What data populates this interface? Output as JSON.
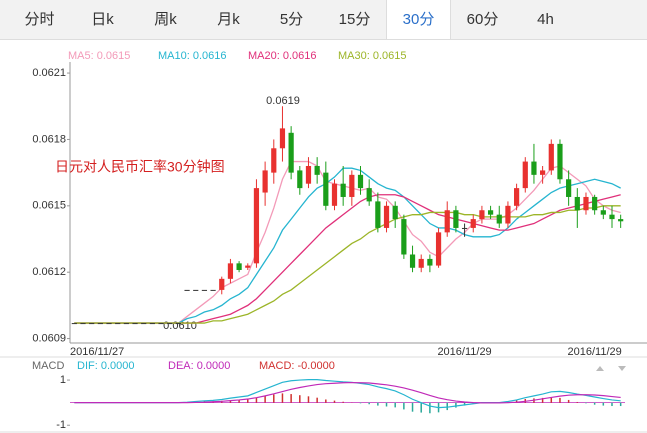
{
  "tabs": [
    "分时",
    "日k",
    "周k",
    "月k",
    "5分",
    "15分",
    "30分",
    "60分",
    "4h"
  ],
  "chart_data": [
    {
      "type": "candlestick",
      "title": "日元对人民币汇率30分钟图",
      "categories": [
        "2016/11/27",
        null,
        null,
        null,
        null,
        null,
        null,
        null,
        null,
        null,
        null,
        null,
        null,
        null,
        null,
        null,
        null,
        null,
        null,
        null,
        null,
        null,
        null,
        null,
        null,
        null,
        null,
        null,
        null,
        null,
        null,
        null,
        null,
        null,
        null,
        null,
        null,
        null,
        null,
        null,
        null,
        null,
        null,
        null,
        null,
        "2016/11/29",
        null,
        null,
        null,
        null,
        null,
        null,
        null,
        null,
        null,
        null,
        null,
        null,
        null,
        null,
        "2016/11/29",
        null,
        null,
        null
      ],
      "open": [
        0.06097,
        0.06097,
        0.06097,
        0.06097,
        0.06097,
        0.06097,
        0.06097,
        0.06097,
        0.06097,
        0.06097,
        0.06097,
        0.06097,
        0.06097,
        0.06112,
        0.06112,
        0.06112,
        0.06112,
        0.06112,
        0.06117,
        0.06124,
        0.06122,
        0.06124,
        0.06156,
        0.06165,
        0.06176,
        0.06183,
        0.06166,
        0.0616,
        0.06168,
        0.06165,
        0.0615,
        0.0616,
        0.06154,
        0.06164,
        0.06158,
        0.06152,
        0.0614,
        0.0615,
        0.06144,
        0.06128,
        0.06122,
        0.06126,
        0.06123,
        0.06138,
        0.06148,
        0.0614,
        0.0614,
        0.06144,
        0.06148,
        0.06146,
        0.06142,
        0.0615,
        0.06158,
        0.0617,
        0.06164,
        0.06166,
        0.06178,
        0.06162,
        0.06154,
        0.06148,
        0.06154,
        0.06148,
        0.06146,
        0.06144
      ],
      "high": [
        0.06097,
        0.06097,
        0.06097,
        0.06097,
        0.06097,
        0.06097,
        0.06097,
        0.06097,
        0.06097,
        0.06097,
        0.06097,
        0.06097,
        0.06097,
        0.06112,
        0.06112,
        0.06112,
        0.06112,
        0.06118,
        0.06126,
        0.06125,
        0.06124,
        0.06162,
        0.0617,
        0.0618,
        0.06195,
        0.06186,
        0.06168,
        0.06172,
        0.06172,
        0.0617,
        0.06162,
        0.06168,
        0.06166,
        0.06168,
        0.06162,
        0.06156,
        0.06152,
        0.06152,
        0.06146,
        0.06132,
        0.06128,
        0.06128,
        0.0614,
        0.06152,
        0.0615,
        0.06142,
        0.06146,
        0.0615,
        0.0615,
        0.0615,
        0.06152,
        0.0616,
        0.06172,
        0.06178,
        0.06168,
        0.0618,
        0.0618,
        0.06166,
        0.06158,
        0.06156,
        0.06155,
        0.0615,
        0.0615,
        0.06146
      ],
      "low": [
        0.06097,
        0.06097,
        0.06097,
        0.06097,
        0.06097,
        0.06097,
        0.06097,
        0.06097,
        0.06097,
        0.06097,
        0.06097,
        0.06097,
        0.06097,
        0.06112,
        0.06112,
        0.06112,
        0.06112,
        0.0611,
        0.06115,
        0.0612,
        0.06121,
        0.06122,
        0.0615,
        0.0616,
        0.0617,
        0.06162,
        0.06155,
        0.06158,
        0.0616,
        0.06148,
        0.06148,
        0.0615,
        0.0615,
        0.06155,
        0.0615,
        0.06138,
        0.06138,
        0.0614,
        0.06126,
        0.0612,
        0.0612,
        0.0612,
        0.06122,
        0.06136,
        0.06138,
        0.06136,
        0.06138,
        0.06142,
        0.06144,
        0.0614,
        0.0614,
        0.06148,
        0.06156,
        0.0616,
        0.0616,
        0.06164,
        0.0616,
        0.0615,
        0.0614,
        0.06146,
        0.06146,
        0.06144,
        0.0614,
        0.0614
      ],
      "close": [
        0.06097,
        0.06097,
        0.06097,
        0.06097,
        0.06097,
        0.06097,
        0.06097,
        0.06097,
        0.06097,
        0.06097,
        0.06097,
        0.06097,
        0.06097,
        0.06112,
        0.06112,
        0.06112,
        0.06112,
        0.06117,
        0.06124,
        0.06121,
        0.06123,
        0.06158,
        0.06166,
        0.06176,
        0.06185,
        0.06165,
        0.06158,
        0.06168,
        0.06164,
        0.0615,
        0.0616,
        0.06154,
        0.06164,
        0.06158,
        0.06152,
        0.0614,
        0.0615,
        0.06144,
        0.06128,
        0.06122,
        0.06126,
        0.06123,
        0.06138,
        0.06148,
        0.0614,
        0.0614,
        0.06144,
        0.06148,
        0.06146,
        0.06142,
        0.0615,
        0.06158,
        0.0617,
        0.06164,
        0.06166,
        0.06178,
        0.06162,
        0.06154,
        0.06148,
        0.06154,
        0.06148,
        0.06146,
        0.06144,
        0.06143
      ],
      "up_color": "#e8312f",
      "down_color": "#1a9e1a",
      "flat_color": "#333333",
      "series": [
        {
          "name": "MA5: 0.0615",
          "color": "#f39ab8",
          "values": [
            0.06097,
            0.06097,
            0.06097,
            0.06097,
            0.06097,
            0.06097,
            0.06097,
            0.06097,
            0.06097,
            0.06097,
            0.06097,
            0.06097,
            0.06097,
            0.061,
            0.06103,
            0.06106,
            0.06109,
            0.06113,
            0.06115,
            0.06117,
            0.06119,
            0.06129,
            0.06138,
            0.06149,
            0.06162,
            0.0617,
            0.0617,
            0.0617,
            0.06168,
            0.06161,
            0.0616,
            0.06159,
            0.06158,
            0.06157,
            0.06158,
            0.06154,
            0.06153,
            0.06149,
            0.06143,
            0.06137,
            0.06134,
            0.06129,
            0.06127,
            0.06131,
            0.06135,
            0.06138,
            0.06142,
            0.06144,
            0.06144,
            0.06144,
            0.06146,
            0.06149,
            0.06153,
            0.06157,
            0.06162,
            0.06167,
            0.06168,
            0.06165,
            0.06162,
            0.06159,
            0.06153,
            0.0615,
            0.06148,
            0.06147
          ]
        },
        {
          "name": "MA10: 0.0616",
          "color": "#26b5d0",
          "values": [
            0.06097,
            0.06097,
            0.06097,
            0.06097,
            0.06097,
            0.06097,
            0.06097,
            0.06097,
            0.06097,
            0.06097,
            0.06097,
            0.06097,
            0.06097,
            0.06099,
            0.061,
            0.06102,
            0.06103,
            0.06105,
            0.06108,
            0.0611,
            0.06113,
            0.06119,
            0.06125,
            0.06131,
            0.06139,
            0.06144,
            0.06149,
            0.06154,
            0.06158,
            0.0616,
            0.06163,
            0.06167,
            0.06167,
            0.06166,
            0.06163,
            0.0616,
            0.06158,
            0.06157,
            0.06154,
            0.0615,
            0.06146,
            0.06142,
            0.0614,
            0.0614,
            0.06139,
            0.06137,
            0.06136,
            0.06136,
            0.06136,
            0.06137,
            0.0614,
            0.06144,
            0.06147,
            0.0615,
            0.06153,
            0.06156,
            0.06158,
            0.06159,
            0.0616,
            0.06161,
            0.06162,
            0.06161,
            0.0616,
            0.06158
          ]
        },
        {
          "name": "MA20: 0.0616",
          "color": "#e0307a",
          "values": [
            0.06097,
            0.06097,
            0.06097,
            0.06097,
            0.06097,
            0.06097,
            0.06097,
            0.06097,
            0.06097,
            0.06097,
            0.06097,
            0.06097,
            0.06097,
            0.06097,
            0.06097,
            0.06098,
            0.06099,
            0.061,
            0.06101,
            0.06103,
            0.06105,
            0.06108,
            0.06112,
            0.06116,
            0.0612,
            0.06124,
            0.06128,
            0.06132,
            0.06136,
            0.0614,
            0.06143,
            0.06146,
            0.06149,
            0.06152,
            0.06154,
            0.06155,
            0.06155,
            0.06155,
            0.06154,
            0.06152,
            0.0615,
            0.06148,
            0.06146,
            0.06145,
            0.06144,
            0.06143,
            0.06142,
            0.06141,
            0.0614,
            0.06139,
            0.06139,
            0.0614,
            0.06141,
            0.06142,
            0.06144,
            0.06146,
            0.06148,
            0.06149,
            0.0615,
            0.06151,
            0.06152,
            0.06153,
            0.06154,
            0.06155
          ]
        },
        {
          "name": "MA30: 0.0615",
          "color": "#9cb528",
          "values": [
            0.06097,
            0.06097,
            0.06097,
            0.06097,
            0.06097,
            0.06097,
            0.06097,
            0.06097,
            0.06097,
            0.06097,
            0.06097,
            0.06097,
            0.06097,
            0.06097,
            0.06097,
            0.06097,
            0.06098,
            0.06098,
            0.06099,
            0.061,
            0.06101,
            0.06103,
            0.06105,
            0.06107,
            0.0611,
            0.06112,
            0.06115,
            0.06118,
            0.06121,
            0.06124,
            0.06127,
            0.0613,
            0.06133,
            0.06135,
            0.06138,
            0.0614,
            0.06142,
            0.06144,
            0.06145,
            0.06146,
            0.06146,
            0.06147,
            0.06147,
            0.06147,
            0.06147,
            0.06146,
            0.06146,
            0.06145,
            0.06145,
            0.06145,
            0.06145,
            0.06145,
            0.06145,
            0.06146,
            0.06146,
            0.06147,
            0.06147,
            0.06148,
            0.06148,
            0.06149,
            0.06149,
            0.0615,
            0.0615,
            0.0615
          ]
        }
      ],
      "annotations": [
        "0.0619",
        "0.0610"
      ],
      "ylim": [
        0.06088,
        0.06215
      ],
      "yticks": [
        0.0609,
        0.0612,
        0.0615,
        0.0618,
        0.0621
      ]
    },
    {
      "type": "macd",
      "title": "MACD",
      "series": [
        {
          "name": "DIF: 0.0000",
          "color": "#26b5d0",
          "values": [
            0,
            0,
            0,
            0,
            0,
            0,
            0,
            0,
            0,
            0,
            0,
            0,
            0,
            0.02,
            0.05,
            0.08,
            0.1,
            0.14,
            0.2,
            0.25,
            0.3,
            0.45,
            0.6,
            0.75,
            0.9,
            0.97,
            1.0,
            1.02,
            1.02,
            0.98,
            0.95,
            0.92,
            0.9,
            0.85,
            0.8,
            0.7,
            0.62,
            0.52,
            0.35,
            0.15,
            0,
            -0.15,
            -0.22,
            -0.2,
            -0.15,
            -0.1,
            -0.05,
            0,
            0,
            0,
            0.05,
            0.12,
            0.22,
            0.3,
            0.38,
            0.48,
            0.5,
            0.45,
            0.38,
            0.32,
            0.25,
            0.18,
            0.12,
            0.08
          ]
        },
        {
          "name": "DEA: 0.0000",
          "color": "#c02ab8",
          "values": [
            0,
            0,
            0,
            0,
            0,
            0,
            0,
            0,
            0,
            0,
            0,
            0,
            0,
            0,
            0.01,
            0.02,
            0.04,
            0.06,
            0.09,
            0.12,
            0.16,
            0.22,
            0.3,
            0.39,
            0.49,
            0.59,
            0.67,
            0.74,
            0.8,
            0.84,
            0.86,
            0.88,
            0.89,
            0.88,
            0.87,
            0.83,
            0.79,
            0.73,
            0.65,
            0.55,
            0.44,
            0.32,
            0.21,
            0.13,
            0.07,
            0.03,
            0,
            -0.01,
            -0.01,
            -0.01,
            0,
            0.02,
            0.06,
            0.11,
            0.17,
            0.23,
            0.29,
            0.33,
            0.35,
            0.35,
            0.34,
            0.31,
            0.27,
            0.23
          ]
        }
      ],
      "histogram": {
        "name": "MACD: -0.0000",
        "color": "#d0302e",
        "up_color": "#d0302e",
        "down_color": "#2aa89a",
        "values": [
          0,
          0,
          0,
          0,
          0,
          0,
          0,
          0,
          0,
          0,
          0,
          0,
          0,
          0.02,
          0.04,
          0.06,
          0.06,
          0.08,
          0.11,
          0.13,
          0.14,
          0.23,
          0.3,
          0.36,
          0.41,
          0.38,
          0.33,
          0.28,
          0.22,
          0.14,
          0.09,
          0.04,
          0.01,
          -0.03,
          -0.07,
          -0.13,
          -0.17,
          -0.21,
          -0.3,
          -0.4,
          -0.44,
          -0.47,
          -0.43,
          -0.33,
          -0.22,
          -0.13,
          -0.05,
          0.01,
          0.01,
          0.01,
          0.05,
          0.1,
          0.16,
          0.19,
          0.21,
          0.25,
          0.21,
          0.12,
          0.03,
          -0.03,
          -0.09,
          -0.13,
          -0.15,
          -0.15
        ]
      },
      "ylim": [
        -1.3,
        1.8
      ],
      "yticks": [
        -1,
        1
      ]
    }
  ]
}
